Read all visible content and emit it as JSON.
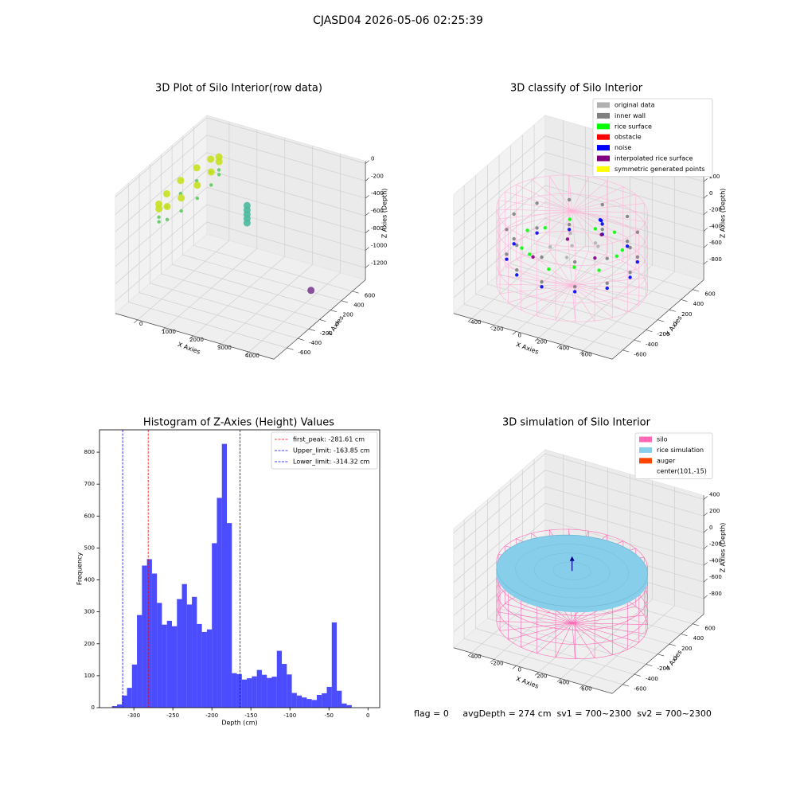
{
  "title": "CJASD04 2026-05-06 02:25:39",
  "footer": "flag = 0     avgDepth = 274 cm  sv1 = 700~2300  sv2 = 700~2300",
  "chart_data": [
    {
      "type": "scatter3d",
      "title": "3D Plot of Silo Interior(row data)",
      "xlabel": "X Axies",
      "ylabel": "Y Axies",
      "zlabel": "Z Axies (Depth)",
      "xlim": [
        -800,
        4900
      ],
      "ylim": [
        -840,
        840
      ],
      "zlim": [
        -1340,
        30
      ],
      "xticks": [
        0,
        1000,
        2000,
        3000,
        4000
      ],
      "yticks": [
        -600,
        -400,
        -200,
        0,
        200,
        400,
        600
      ],
      "zticks": [
        -1200,
        -1000,
        -800,
        -600,
        -400,
        -200,
        0
      ],
      "series": [
        {
          "color": "#5ec962",
          "x": [
            500,
            460,
            350,
            200,
            50,
            -60,
            -100,
            -60,
            50,
            200,
            350,
            460
          ],
          "y": [
            0,
            275,
            476,
            550,
            476,
            275,
            0,
            -275,
            -476,
            -550,
            -476,
            -275
          ],
          "z": [
            -350,
            -350,
            -350,
            -350,
            -350,
            -350,
            -350,
            -350,
            -350,
            -350,
            -350,
            -350
          ]
        },
        {
          "color": "#c8e020",
          "x": [
            500,
            460,
            350,
            200,
            50,
            -60,
            -100,
            -60,
            50,
            200,
            350,
            460
          ],
          "y": [
            0,
            275,
            476,
            550,
            476,
            275,
            0,
            -275,
            -476,
            -550,
            -476,
            -275
          ],
          "z": [
            -200,
            -200,
            -200,
            -200,
            -200,
            -200,
            -200,
            -200,
            -200,
            -200,
            -200,
            -200
          ]
        },
        {
          "color": "#4cb99f",
          "x": [
            1800,
            1800,
            1800,
            1800,
            1800
          ],
          "y": [
            250,
            250,
            250,
            250,
            250
          ],
          "z": [
            -450,
            -500,
            -550,
            -600,
            -650
          ]
        },
        {
          "color": "#7b3f91",
          "x": [
            4000
          ],
          "y": [
            300
          ],
          "z": [
            -1250
          ]
        }
      ]
    },
    {
      "type": "scatter3d",
      "title": "3D classify of Silo Interior",
      "xlabel": "X Axies",
      "ylabel": "Y Axies",
      "zlabel": "Z Axies (Depth)",
      "xlim": [
        -560,
        860
      ],
      "ylim": [
        -780,
        790
      ],
      "zlim": [
        -990,
        450
      ],
      "xticks": [
        -400,
        -200,
        0,
        200,
        400,
        600
      ],
      "yticks": [
        -600,
        -400,
        -200,
        0,
        200,
        400,
        600
      ],
      "zticks": [
        -800,
        -600,
        -400,
        -200,
        0,
        200
      ],
      "center": [
        101,
        -15
      ],
      "series": [
        {
          "color": "#ffb3d9",
          "shape": "wireframe",
          "radius": 600,
          "z": [
            -865,
            40
          ]
        },
        {
          "name": "original data",
          "color": "#b0b0b0",
          "x": [
            101,
            250,
            -50,
            150,
            0,
            300
          ],
          "y": [
            -15,
            100,
            -100,
            -200,
            150,
            50
          ],
          "z": [
            -380,
            -360,
            -400,
            -390,
            -370,
            -350
          ]
        },
        {
          "name": "inner wall",
          "color": "#808080",
          "x": [
            621,
            551,
            361,
            101,
            -159,
            -349,
            -419,
            -349,
            -159,
            101,
            361,
            551,
            621,
            551,
            361,
            101,
            -159,
            -349,
            -419,
            -349,
            -159,
            101,
            361,
            551
          ],
          "y": [
            -15,
            245,
            435,
            505,
            435,
            245,
            -15,
            -275,
            -465,
            -535,
            -465,
            -275,
            -15,
            245,
            435,
            505,
            435,
            245,
            -15,
            -275,
            -465,
            -535,
            -465,
            -275
          ],
          "z": [
            -200,
            -200,
            -200,
            -200,
            -200,
            -200,
            -200,
            -200,
            -200,
            -200,
            -200,
            -200,
            -500,
            -500,
            -500,
            -500,
            -500,
            -500,
            -500,
            -500,
            -500,
            -500,
            -500,
            -500
          ]
        },
        {
          "name": "rice surface",
          "color": "#00ff00",
          "x": [
            501,
            447,
            301,
            101,
            -99,
            -245,
            -299,
            -245,
            -99,
            101,
            301,
            447
          ],
          "y": [
            -15,
            185,
            331,
            385,
            331,
            185,
            -15,
            -215,
            -361,
            -415,
            -361,
            -215
          ],
          "z": [
            -350,
            -420,
            -350,
            -420,
            -350,
            -420,
            -350,
            -420,
            -350,
            -420,
            -350,
            -420
          ]
        },
        {
          "name": "obstacle",
          "color": "#ff0000",
          "x": [],
          "y": [],
          "z": []
        },
        {
          "name": "noise",
          "color": "#0000ff",
          "x": [
            621,
            551,
            361,
            101,
            -159,
            -349,
            -419,
            -349,
            -159,
            101,
            361,
            551,
            250,
            270,
            230
          ],
          "y": [
            -15,
            245,
            435,
            505,
            435,
            245,
            -15,
            -275,
            -465,
            -535,
            -465,
            -275,
            200,
            180,
            220
          ],
          "z": [
            -560,
            -560,
            -560,
            -560,
            -560,
            -560,
            -560,
            -560,
            -560,
            -560,
            -560,
            -560,
            -150,
            -170,
            -160
          ]
        },
        {
          "name": "interpolated rice surface",
          "color": "#800080",
          "x": [
            200,
            -100,
            350,
            0
          ],
          "y": [
            300,
            -300,
            -100,
            100
          ],
          "z": [
            -400,
            -420,
            -380,
            -410
          ]
        },
        {
          "name": "symmetric generated points",
          "color": "#ffff00",
          "x": [],
          "y": [],
          "z": []
        }
      ]
    },
    {
      "type": "histogram",
      "title": "Histogram of Z-Axies (Height) Values",
      "xlabel": "Depth (cm)",
      "ylabel": "Frequency",
      "color": "#0000ff",
      "alpha": 0.7,
      "xlim": [
        -344,
        15
      ],
      "ylim": [
        0,
        870
      ],
      "xticks": [
        -300,
        -250,
        -200,
        -150,
        -100,
        -50,
        0
      ],
      "yticks": [
        0,
        100,
        200,
        300,
        400,
        500,
        600,
        700,
        800
      ],
      "bins": [
        -328,
        -321.6,
        -315.2,
        -308.8,
        -302.4,
        -296,
        -289.6,
        -283.2,
        -276.8,
        -270.4,
        -264,
        -257.6,
        -251.2,
        -244.8,
        -238.4,
        -232,
        -225.6,
        -219.2,
        -212.8,
        -206.4,
        -200,
        -193.6,
        -187.2,
        -180.8,
        -174.4,
        -168,
        -161.6,
        -155.2,
        -148.8,
        -142.4,
        -136,
        -129.6,
        -123.2,
        -116.8,
        -110.4,
        -104,
        -97.6,
        -91.2,
        -84.8,
        -78.4,
        -72,
        -65.6,
        -59.2,
        -52.8,
        -46.4,
        -40,
        -33.6,
        -27.2,
        -20.8
      ],
      "values": [
        5,
        10,
        38,
        62,
        135,
        290,
        445,
        465,
        420,
        328,
        260,
        272,
        255,
        340,
        387,
        323,
        347,
        262,
        237,
        245,
        515,
        657,
        826,
        578,
        108,
        105,
        88,
        92,
        98,
        118,
        103,
        93,
        97,
        178,
        137,
        104,
        46,
        38,
        32,
        27,
        24,
        40,
        45,
        65,
        267,
        53,
        13,
        8
      ],
      "vlines": [
        {
          "name": "first_peak: -281.61 cm",
          "value": -281.61,
          "color": "#ff0000"
        },
        {
          "name": "Upper_limit: -163.85 cm",
          "value": -163.85,
          "color": "#0000ff"
        },
        {
          "name": "Lower_limit: -314.32 cm",
          "value": -314.32,
          "color": "#0000ff"
        }
      ]
    },
    {
      "type": "scatter3d",
      "title": "3D simulation of Silo Interior",
      "xlabel": "X Axies",
      "ylabel": "Y Axies",
      "zlabel": "Z Axies (Depth)",
      "xlim": [
        -560,
        860
      ],
      "ylim": [
        -780,
        790
      ],
      "zlim": [
        -990,
        450
      ],
      "xticks": [
        -400,
        -200,
        0,
        200,
        400,
        600
      ],
      "yticks": [
        -600,
        -400,
        -200,
        0,
        200,
        400,
        600
      ],
      "zticks": [
        -800,
        -600,
        -400,
        -200,
        0,
        200,
        400
      ],
      "center": [
        101,
        -15
      ],
      "series": [
        {
          "name": "silo",
          "color": "#ff69b4",
          "shape": "wireframe",
          "radius": 600,
          "z": [
            -900,
            -200
          ]
        },
        {
          "name": "rice simulation",
          "color": "#87ceeb",
          "shape": "solid",
          "radius": 600,
          "z": [
            -330,
            -270
          ]
        },
        {
          "name": "auger",
          "color": "#ff4500",
          "marker_color": "#00008b",
          "shape": "arrow",
          "z": [
            -270,
            -150
          ]
        },
        {
          "name": "center(101,-15)"
        }
      ]
    }
  ]
}
